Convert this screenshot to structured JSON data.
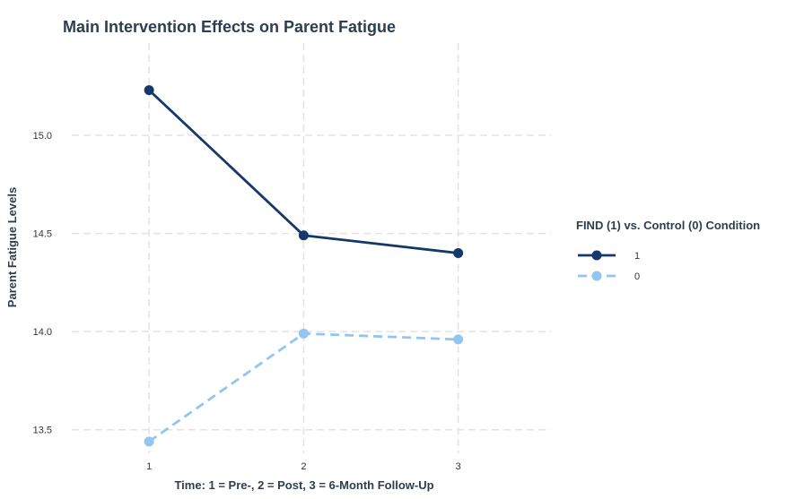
{
  "chart_data": {
    "type": "line",
    "title": "Main Intervention Effects on Parent Fatigue",
    "xlabel": "Time: 1 = Pre-, 2 = Post, 3 = 6-Month Follow-Up",
    "ylabel": "Parent Fatigue Levels",
    "x": [
      1,
      2,
      3
    ],
    "x_ticks": [
      "1",
      "2",
      "3"
    ],
    "xlim": [
      0.5,
      3.6
    ],
    "ylim": [
      13.38,
      15.47
    ],
    "y_ticks": [
      "13.5",
      "14.0",
      "14.5",
      "15.0"
    ],
    "y_tick_values": [
      13.5,
      14.0,
      14.5,
      15.0
    ],
    "grid": true,
    "legend": {
      "title": "FIND (1) vs. Control (0) Condition",
      "placement": "right"
    },
    "series": [
      {
        "name": "1",
        "values": [
          15.23,
          14.49,
          14.4
        ],
        "color": "#14386b",
        "style": "solid"
      },
      {
        "name": "0",
        "values": [
          13.44,
          13.99,
          13.96
        ],
        "color": "#92c5f0",
        "style": "dashed"
      }
    ]
  }
}
